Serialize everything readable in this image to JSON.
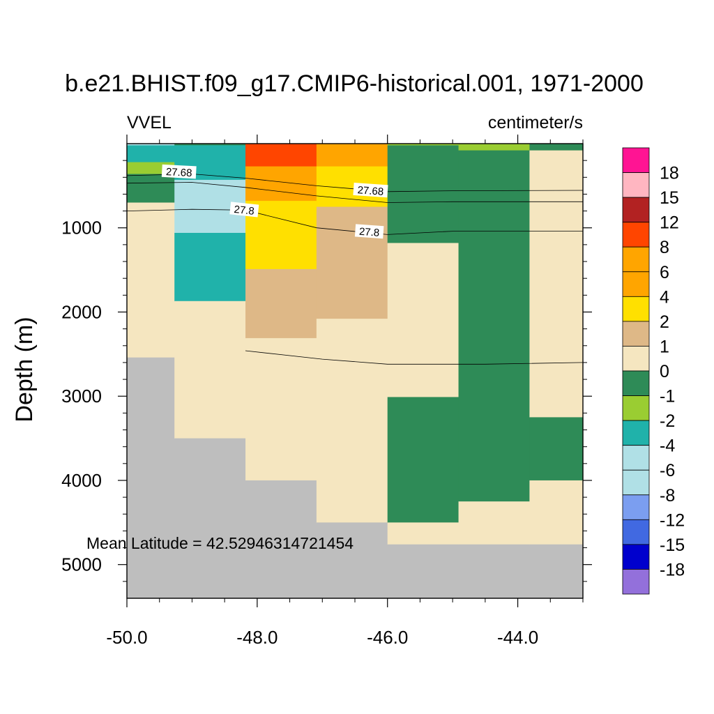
{
  "chart_data": {
    "type": "heatmap",
    "title": "b.e21.BHIST.f09_g17.CMIP6-historical.001, 1971-2000",
    "left_string": "VVEL",
    "right_string": "centimeter/s",
    "xlabel": "",
    "ylabel": "Depth (m)",
    "xlim": [
      -50.0,
      -43.0
    ],
    "ylim": [
      5400,
      0
    ],
    "x_ticks": [
      -50.0,
      -48.0,
      -46.0,
      -44.0
    ],
    "x_tick_labels": [
      "-50.0",
      "-48.0",
      "-46.0",
      "-44.0"
    ],
    "y_ticks": [
      1000,
      2000,
      3000,
      4000,
      5000
    ],
    "y_tick_labels": [
      "1000",
      "2000",
      "3000",
      "4000",
      "5000"
    ],
    "annotation": "Mean Latitude = 42.52946314721454",
    "land_color": "#bebebe",
    "colorbar": {
      "colors": [
        "#ff1493",
        "#ffb6c1",
        "#b22222",
        "#ff4500",
        "#ffa500",
        "#ffa500",
        "#ffe000",
        "#deb887",
        "#f5e6c0",
        "#2e8b57",
        "#9acd32",
        "#20b2aa",
        "#b0e0e6",
        "#b0e0e6",
        "#7b9ef0",
        "#4169e1",
        "#0000cd",
        "#9370db"
      ],
      "labels": [
        "18",
        "15",
        "12",
        "8",
        "6",
        "4",
        "2",
        "1",
        "0",
        "-1",
        "-2",
        "-4",
        "-6",
        "-8",
        "-12",
        "-15",
        "-18"
      ]
    },
    "columns_lon": [
      [
        -50.0,
        -49.27
      ],
      [
        -49.27,
        -48.18
      ],
      [
        -48.18,
        -47.09
      ],
      [
        -47.09,
        -46.0
      ],
      [
        -46.0,
        -44.91
      ],
      [
        -44.91,
        -43.82
      ],
      [
        -43.82,
        -43.0
      ]
    ],
    "cells": [
      {
        "col": 0,
        "d0": 0,
        "d1": 20,
        "v": -6
      },
      {
        "col": 0,
        "d0": 20,
        "d1": 220,
        "v": -4
      },
      {
        "col": 0,
        "d0": 220,
        "d1": 360,
        "v": -2
      },
      {
        "col": 0,
        "d0": 360,
        "d1": 700,
        "v": -1
      },
      {
        "col": 0,
        "d0": 700,
        "d1": 2540,
        "v": 0
      },
      {
        "col": 0,
        "d0": 2540,
        "d1": 5400,
        "land": true
      },
      {
        "col": 1,
        "d0": 0,
        "d1": 20,
        "v": -1
      },
      {
        "col": 1,
        "d0": 20,
        "d1": 430,
        "v": -4
      },
      {
        "col": 1,
        "d0": 430,
        "d1": 1060,
        "v": -6
      },
      {
        "col": 1,
        "d0": 1060,
        "d1": 1870,
        "v": -4
      },
      {
        "col": 1,
        "d0": 1870,
        "d1": 3500,
        "v": 0
      },
      {
        "col": 1,
        "d0": 3500,
        "d1": 5400,
        "land": true
      },
      {
        "col": 2,
        "d0": 0,
        "d1": 270,
        "v": 8
      },
      {
        "col": 2,
        "d0": 270,
        "d1": 680,
        "v": 4
      },
      {
        "col": 2,
        "d0": 680,
        "d1": 1490,
        "v": 2
      },
      {
        "col": 2,
        "d0": 1490,
        "d1": 2310,
        "v": 1
      },
      {
        "col": 2,
        "d0": 2310,
        "d1": 4000,
        "v": 0
      },
      {
        "col": 2,
        "d0": 4000,
        "d1": 5400,
        "land": true
      },
      {
        "col": 3,
        "d0": 0,
        "d1": 270,
        "v": 6
      },
      {
        "col": 3,
        "d0": 270,
        "d1": 750,
        "v": 2
      },
      {
        "col": 3,
        "d0": 750,
        "d1": 2080,
        "v": 1
      },
      {
        "col": 3,
        "d0": 2080,
        "d1": 4500,
        "v": 0
      },
      {
        "col": 3,
        "d0": 4500,
        "d1": 5400,
        "land": true
      },
      {
        "col": 4,
        "d0": 0,
        "d1": 20,
        "v": -2
      },
      {
        "col": 4,
        "d0": 20,
        "d1": 1180,
        "v": -1
      },
      {
        "col": 4,
        "d0": 1180,
        "d1": 3010,
        "v": 0
      },
      {
        "col": 4,
        "d0": 3010,
        "d1": 4500,
        "v": -1
      },
      {
        "col": 4,
        "d0": 4500,
        "d1": 4760,
        "v": 0
      },
      {
        "col": 4,
        "d0": 4760,
        "d1": 5400,
        "land": true
      },
      {
        "col": 5,
        "d0": 0,
        "d1": 80,
        "v": -2
      },
      {
        "col": 5,
        "d0": 80,
        "d1": 4250,
        "v": -1
      },
      {
        "col": 5,
        "d0": 4250,
        "d1": 4760,
        "v": 0
      },
      {
        "col": 5,
        "d0": 4760,
        "d1": 5400,
        "land": true
      },
      {
        "col": 6,
        "d0": 0,
        "d1": 80,
        "v": -1
      },
      {
        "col": 6,
        "d0": 80,
        "d1": 3250,
        "v": 0
      },
      {
        "col": 6,
        "d0": 3250,
        "d1": 4000,
        "v": -1
      },
      {
        "col": 6,
        "d0": 4000,
        "d1": 4760,
        "v": 0
      },
      {
        "col": 6,
        "d0": 4760,
        "d1": 5400,
        "land": true
      }
    ],
    "contours": [
      {
        "level": "27.68",
        "points": [
          [
            -50.0,
            380
          ],
          [
            -49.0,
            360
          ],
          [
            -48.18,
            410
          ],
          [
            -47.09,
            500
          ],
          [
            -46.0,
            570
          ],
          [
            -45.0,
            560
          ],
          [
            -43.0,
            555
          ]
        ]
      },
      {
        "level": "27.68",
        "points": [
          [
            -50.0,
            470
          ],
          [
            -49.0,
            460
          ],
          [
            -48.18,
            520
          ],
          [
            -47.09,
            620
          ],
          [
            -46.0,
            700
          ],
          [
            -45.0,
            690
          ],
          [
            -43.0,
            690
          ]
        ]
      },
      {
        "level": "27.8",
        "points": [
          [
            -50.0,
            800
          ],
          [
            -49.0,
            780
          ],
          [
            -48.18,
            790
          ],
          [
            -47.09,
            1000
          ],
          [
            -46.0,
            1080
          ],
          [
            -45.0,
            1040
          ],
          [
            -43.0,
            1040
          ]
        ]
      },
      {
        "level": "",
        "points": [
          [
            -48.18,
            2460
          ],
          [
            -47.0,
            2560
          ],
          [
            -46.0,
            2620
          ],
          [
            -44.5,
            2620
          ],
          [
            -43.0,
            2600
          ]
        ]
      }
    ],
    "contour_labels": [
      {
        "text": "27.68",
        "lon": -49.2,
        "depth": 340,
        "rot": 3
      },
      {
        "text": "27.68",
        "lon": -46.26,
        "depth": 560,
        "rot": 4
      },
      {
        "text": "27.8",
        "lon": -48.2,
        "depth": 790,
        "rot": 6
      },
      {
        "text": "27.8",
        "lon": -46.28,
        "depth": 1050,
        "rot": 4
      }
    ]
  }
}
